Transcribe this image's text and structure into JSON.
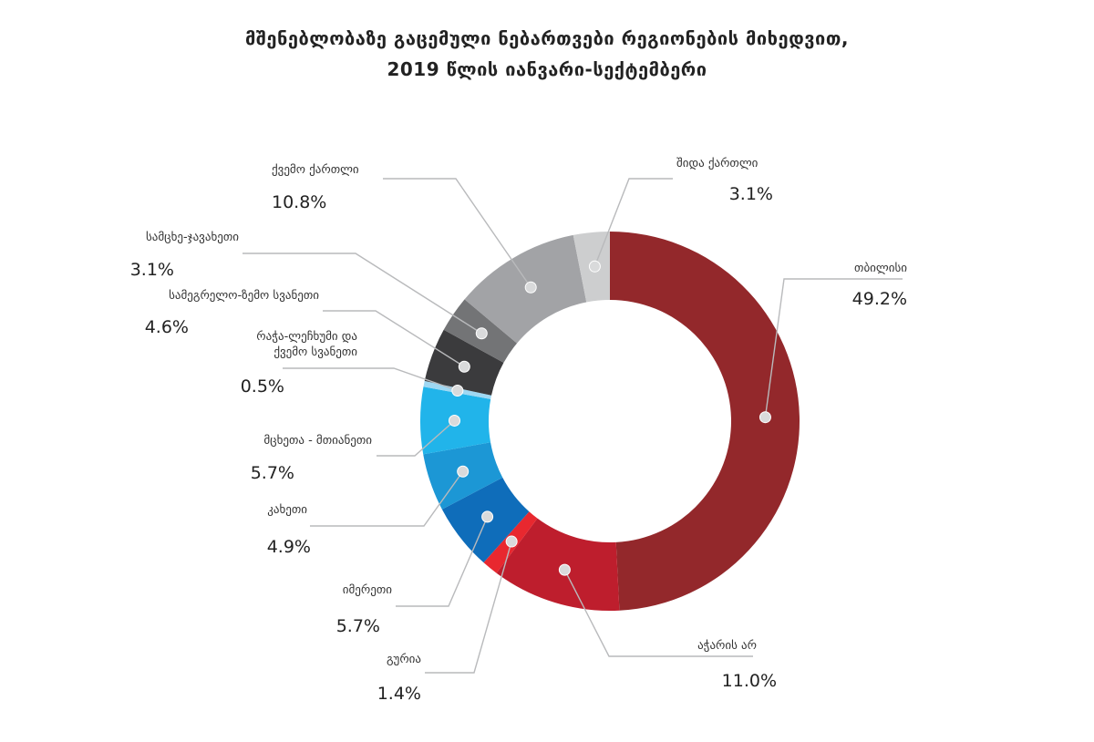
{
  "chart_data": {
    "type": "pie",
    "variant": "donut",
    "title_line1": "მშენებლობაზე გაცემული ნებართვები რეგიონების მიხედვით,",
    "title_line2": "2019 წლის იანვარი-სექტემბერი",
    "legend": "none",
    "slices": [
      {
        "name": "თბილისი",
        "value": 49.2,
        "display": "49.2%",
        "color": "#93282B",
        "label_lines": [
          "თბილისი"
        ]
      },
      {
        "name": "აჭარის არ",
        "value": 11.0,
        "display": "11.0%",
        "color": "#BE1E2D",
        "label_lines": [
          "აჭარის არ"
        ]
      },
      {
        "name": "გურია",
        "value": 1.4,
        "display": "1.4%",
        "color": "#E8282F",
        "label_lines": [
          "გურია"
        ]
      },
      {
        "name": "იმერეთი",
        "value": 5.7,
        "display": "5.7%",
        "color": "#0F6DBA",
        "label_lines": [
          "იმერეთი"
        ]
      },
      {
        "name": "კახეთი",
        "value": 4.9,
        "display": "4.9%",
        "color": "#1C97D5",
        "label_lines": [
          "კახეთი"
        ]
      },
      {
        "name": "მცხეთა - მთიანეთი",
        "value": 5.7,
        "display": "5.7%",
        "color": "#21B4EA",
        "label_lines": [
          "მცხეთა - მთიანეთი"
        ]
      },
      {
        "name": "რაჭა-ლეჩხუმი და ქვემო სვანეთი",
        "value": 0.5,
        "display": "0.5%",
        "color": "#9FD8F3",
        "label_lines": [
          "რაჭა-ლეჩხუმი და",
          "ქვემო სვანეთი"
        ]
      },
      {
        "name": "სამეგრელო-ზემო სვანეთი",
        "value": 4.6,
        "display": "4.6%",
        "color": "#3B3B3D",
        "label_lines": [
          "სამეგრელო-ზემო სვანეთი"
        ]
      },
      {
        "name": "სამცხე-ჯავახეთი",
        "value": 3.1,
        "display": "3.1%",
        "color": "#737476",
        "label_lines": [
          "სამცხე-ჯავახეთი"
        ]
      },
      {
        "name": "ქვემო ქართლი",
        "value": 10.8,
        "display": "10.8%",
        "color": "#A2A3A6",
        "label_lines": [
          "ქვემო ქართლი"
        ]
      },
      {
        "name": "შიდა ქართლი",
        "value": 3.1,
        "display": "3.1%",
        "color": "#CDCECF",
        "label_lines": [
          "შიდა ქართლი"
        ]
      }
    ]
  }
}
